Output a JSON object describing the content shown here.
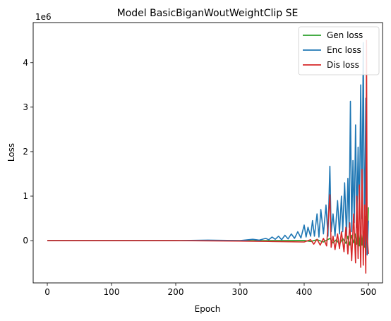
{
  "chart_data": {
    "type": "line",
    "title": "Model BasicBiganWoutWeightClip SE",
    "xlabel": "Epoch",
    "ylabel": "Loss",
    "offset_label": "1e6",
    "xlim": [
      -22,
      522
    ],
    "ylim": [
      -0.95,
      4.9
    ],
    "scale": 1000000,
    "xticks": [
      0,
      100,
      200,
      300,
      400,
      500
    ],
    "yticks": [
      0,
      1,
      2,
      3,
      4
    ],
    "grid": false,
    "legend_position": "top-right",
    "series": [
      {
        "name": "Gen loss",
        "color": "#2ca02c",
        "points": [
          [
            0,
            0.0
          ],
          [
            100,
            0.0
          ],
          [
            200,
            0.0
          ],
          [
            300,
            0.0
          ],
          [
            350,
            0.002
          ],
          [
            400,
            0.005
          ],
          [
            410,
            -0.02
          ],
          [
            420,
            0.02
          ],
          [
            430,
            -0.03
          ],
          [
            440,
            0.05
          ],
          [
            445,
            -0.05
          ],
          [
            450,
            0.02
          ],
          [
            455,
            -0.08
          ],
          [
            460,
            0.05
          ],
          [
            465,
            -0.06
          ],
          [
            468,
            0.1
          ],
          [
            471,
            -0.1
          ],
          [
            474,
            0.12
          ],
          [
            477,
            -0.05
          ],
          [
            480,
            0.15
          ],
          [
            482,
            -0.08
          ],
          [
            484,
            0.25
          ],
          [
            486,
            -0.12
          ],
          [
            488,
            0.3
          ],
          [
            490,
            -0.1
          ],
          [
            492,
            0.2
          ],
          [
            494,
            -0.15
          ],
          [
            496,
            0.55
          ],
          [
            498,
            -0.2
          ],
          [
            500,
            0.75
          ]
        ]
      },
      {
        "name": "Enc loss",
        "color": "#1f77b4",
        "points": [
          [
            0,
            0.0
          ],
          [
            100,
            0.0
          ],
          [
            200,
            0.0
          ],
          [
            250,
            0.01
          ],
          [
            300,
            0.0
          ],
          [
            320,
            0.03
          ],
          [
            330,
            0.01
          ],
          [
            340,
            0.05
          ],
          [
            345,
            0.02
          ],
          [
            350,
            0.08
          ],
          [
            355,
            0.03
          ],
          [
            360,
            0.1
          ],
          [
            365,
            0.02
          ],
          [
            370,
            0.12
          ],
          [
            375,
            0.04
          ],
          [
            380,
            0.15
          ],
          [
            385,
            0.05
          ],
          [
            390,
            0.2
          ],
          [
            395,
            0.06
          ],
          [
            400,
            0.35
          ],
          [
            403,
            0.08
          ],
          [
            406,
            0.3
          ],
          [
            410,
            0.1
          ],
          [
            413,
            0.45
          ],
          [
            416,
            0.1
          ],
          [
            420,
            0.6
          ],
          [
            423,
            0.08
          ],
          [
            426,
            0.7
          ],
          [
            430,
            0.15
          ],
          [
            434,
            0.8
          ],
          [
            437,
            0.1
          ],
          [
            440,
            1.67
          ],
          [
            442,
            0.2
          ],
          [
            445,
            0.6
          ],
          [
            448,
            0.1
          ],
          [
            452,
            0.9
          ],
          [
            455,
            0.15
          ],
          [
            458,
            1.0
          ],
          [
            460,
            0.2
          ],
          [
            463,
            1.3
          ],
          [
            466,
            0.1
          ],
          [
            468,
            1.4
          ],
          [
            470,
            0.3
          ],
          [
            472,
            3.13
          ],
          [
            474,
            0.2
          ],
          [
            476,
            1.8
          ],
          [
            478,
            0.4
          ],
          [
            480,
            2.6
          ],
          [
            482,
            0.3
          ],
          [
            484,
            2.1
          ],
          [
            486,
            0.5
          ],
          [
            488,
            3.5
          ],
          [
            490,
            0.5
          ],
          [
            492,
            4.45
          ],
          [
            494,
            -0.1
          ],
          [
            496,
            3.2
          ],
          [
            498,
            -0.32
          ],
          [
            500,
            0.45
          ]
        ]
      },
      {
        "name": "Dis loss",
        "color": "#d62728",
        "points": [
          [
            0,
            0.0
          ],
          [
            100,
            0.0
          ],
          [
            200,
            0.0
          ],
          [
            300,
            -0.01
          ],
          [
            350,
            -0.02
          ],
          [
            400,
            -0.03
          ],
          [
            410,
            0.02
          ],
          [
            415,
            -0.08
          ],
          [
            420,
            0.03
          ],
          [
            425,
            -0.1
          ],
          [
            430,
            0.05
          ],
          [
            435,
            -0.12
          ],
          [
            440,
            1.03
          ],
          [
            442,
            -0.15
          ],
          [
            445,
            0.1
          ],
          [
            448,
            -0.2
          ],
          [
            452,
            0.15
          ],
          [
            455,
            -0.18
          ],
          [
            458,
            0.2
          ],
          [
            462,
            -0.25
          ],
          [
            465,
            0.3
          ],
          [
            468,
            -0.3
          ],
          [
            471,
            0.4
          ],
          [
            474,
            -0.45
          ],
          [
            477,
            0.6
          ],
          [
            480,
            -0.5
          ],
          [
            482,
            1.0
          ],
          [
            484,
            -0.4
          ],
          [
            486,
            1.25
          ],
          [
            488,
            -0.6
          ],
          [
            490,
            1.6
          ],
          [
            492,
            -0.55
          ],
          [
            494,
            0.8
          ],
          [
            496,
            -0.73
          ],
          [
            497,
            4.5
          ],
          [
            498,
            0.1
          ],
          [
            500,
            -0.3
          ]
        ]
      }
    ]
  }
}
